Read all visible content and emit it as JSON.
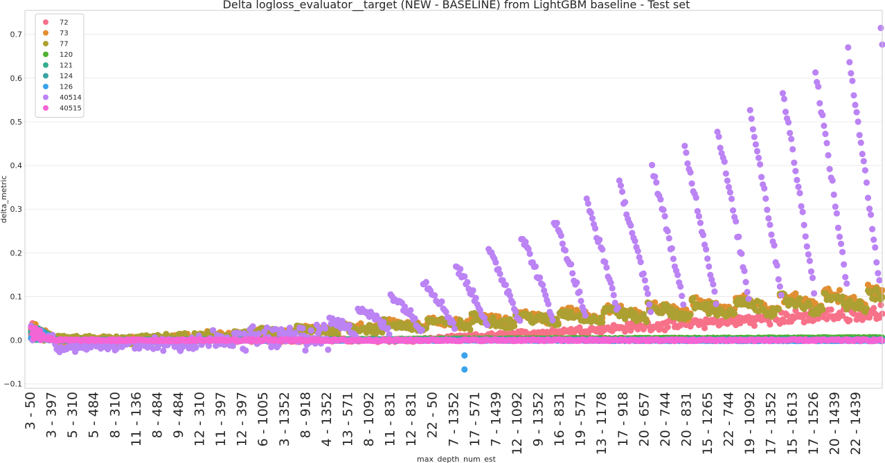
{
  "chart_data": {
    "type": "scatter",
    "title": "Delta logloss_evaluator__target (NEW - BASELINE) from LightGBM baseline - Test set",
    "xlabel": "max_depth_num_est",
    "ylabel": "delta_metric",
    "ylim": [
      -0.11,
      0.755
    ],
    "yticks": [
      -0.1,
      0.0,
      0.1,
      0.2,
      0.3,
      0.4,
      0.5,
      0.6,
      0.7
    ],
    "ytick_labels": [
      "−0.1",
      "0.0",
      "0.1",
      "0.2",
      "0.3",
      "0.4",
      "0.5",
      "0.6",
      "0.7"
    ],
    "grid": true,
    "legend_position": "top-left",
    "num_x_positions": 600,
    "x_tick_labels": [
      "3 - 50",
      "3 - 397",
      "5 - 310",
      "5 - 484",
      "8 - 310",
      "11 - 136",
      "8 - 484",
      "9 - 484",
      "12 - 310",
      "11 - 397",
      "12 - 397",
      "6 - 1005",
      "3 - 1352",
      "8 - 918",
      "4 - 1352",
      "13 - 571",
      "8 - 1092",
      "11 - 831",
      "12 - 831",
      "22 - 50",
      "7 - 1352",
      "17 - 571",
      "7 - 1439",
      "12 - 1092",
      "9 - 1352",
      "16 - 831",
      "19 - 571",
      "13 - 1178",
      "17 - 918",
      "20 - 657",
      "20 - 744",
      "20 - 831",
      "15 - 1265",
      "22 - 744",
      "19 - 1092",
      "17 - 1352",
      "15 - 1613",
      "17 - 1526",
      "20 - 1439",
      "22 - 1439"
    ],
    "series": [
      {
        "name": "72",
        "color": "#f77189",
        "start": 0.0,
        "end": 0.081,
        "shape": "gradual",
        "noise": 0.004
      },
      {
        "name": "73",
        "color": "#e18f32",
        "start": 0.0,
        "end": 0.132,
        "shape": "wave",
        "noise": 0.008
      },
      {
        "name": "77",
        "color": "#aca032",
        "start": 0.0,
        "end": 0.122,
        "shape": "wave",
        "noise": 0.01
      },
      {
        "name": "120",
        "color": "#50b131",
        "start": 0.0,
        "end": 0.006,
        "shape": "flat",
        "noise": 0.001
      },
      {
        "name": "121",
        "color": "#36ae8e",
        "start": 0.0,
        "end": 0.002,
        "shape": "flat",
        "noise": 0.001
      },
      {
        "name": "124",
        "color": "#3ba3a3",
        "start": 0.0,
        "end": 0.001,
        "shape": "flat",
        "noise": 0.001
      },
      {
        "name": "126",
        "color": "#3ba3ec",
        "start": 0.0,
        "end": -0.001,
        "shape": "flat",
        "noise": 0.001
      },
      {
        "name": "40514",
        "color": "#bb83f4",
        "start": -0.02,
        "end": 0.71,
        "shape": "spread",
        "noise": 0.01
      },
      {
        "name": "40515",
        "color": "#f564d4",
        "start": 0.0,
        "end": 0.0,
        "shape": "flat",
        "noise": 0.002
      }
    ],
    "annotations": [
      {
        "series": "126",
        "x_index": 305,
        "y": -0.035
      },
      {
        "series": "126",
        "x_index": 305,
        "y": -0.067
      }
    ]
  }
}
